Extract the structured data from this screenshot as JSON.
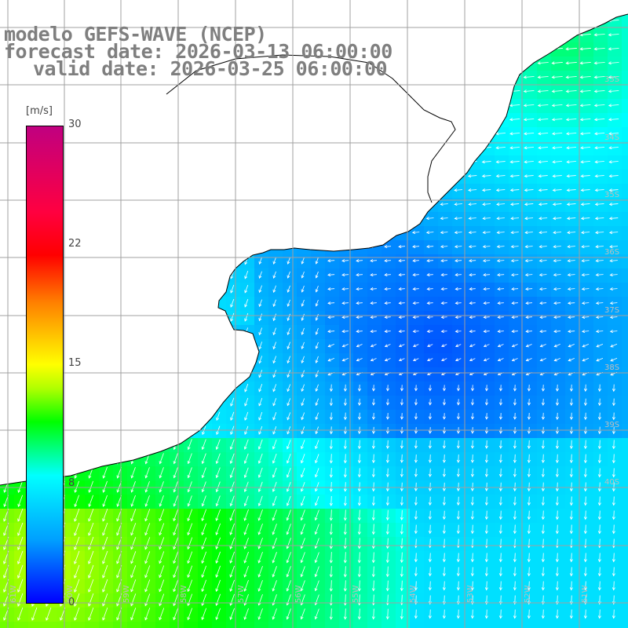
{
  "title": {
    "line1": "modelo GEFS-WAVE (NCEP)",
    "line2": "forecast date: 2026-03-13 06:00:00",
    "line3": "valid date: 2026-03-25 06:00:00"
  },
  "colorbar": {
    "unit": "[m/s]",
    "range": [
      0,
      30
    ],
    "tick_labels": [
      "30",
      "22",
      "15",
      "8",
      "0"
    ],
    "tick_values": [
      30,
      22,
      15,
      8,
      0
    ],
    "colors": [
      "#0000ff",
      "#00a0ff",
      "#00ffff",
      "#00ff00",
      "#ffff00",
      "#ff8000",
      "#ff0000",
      "#c00080"
    ]
  },
  "map": {
    "lat_labels": [
      "33S",
      "34S",
      "35S",
      "36S",
      "37S",
      "38S",
      "39S",
      "40S"
    ],
    "lon_labels": [
      "61W",
      "60W",
      "59W",
      "58W",
      "57W",
      "56W",
      "55W",
      "54W",
      "53W",
      "52W",
      "51W"
    ],
    "land_color": "#ffffff",
    "grid_color": "#a0a0a0",
    "arrow_color": "#ffffff"
  }
}
